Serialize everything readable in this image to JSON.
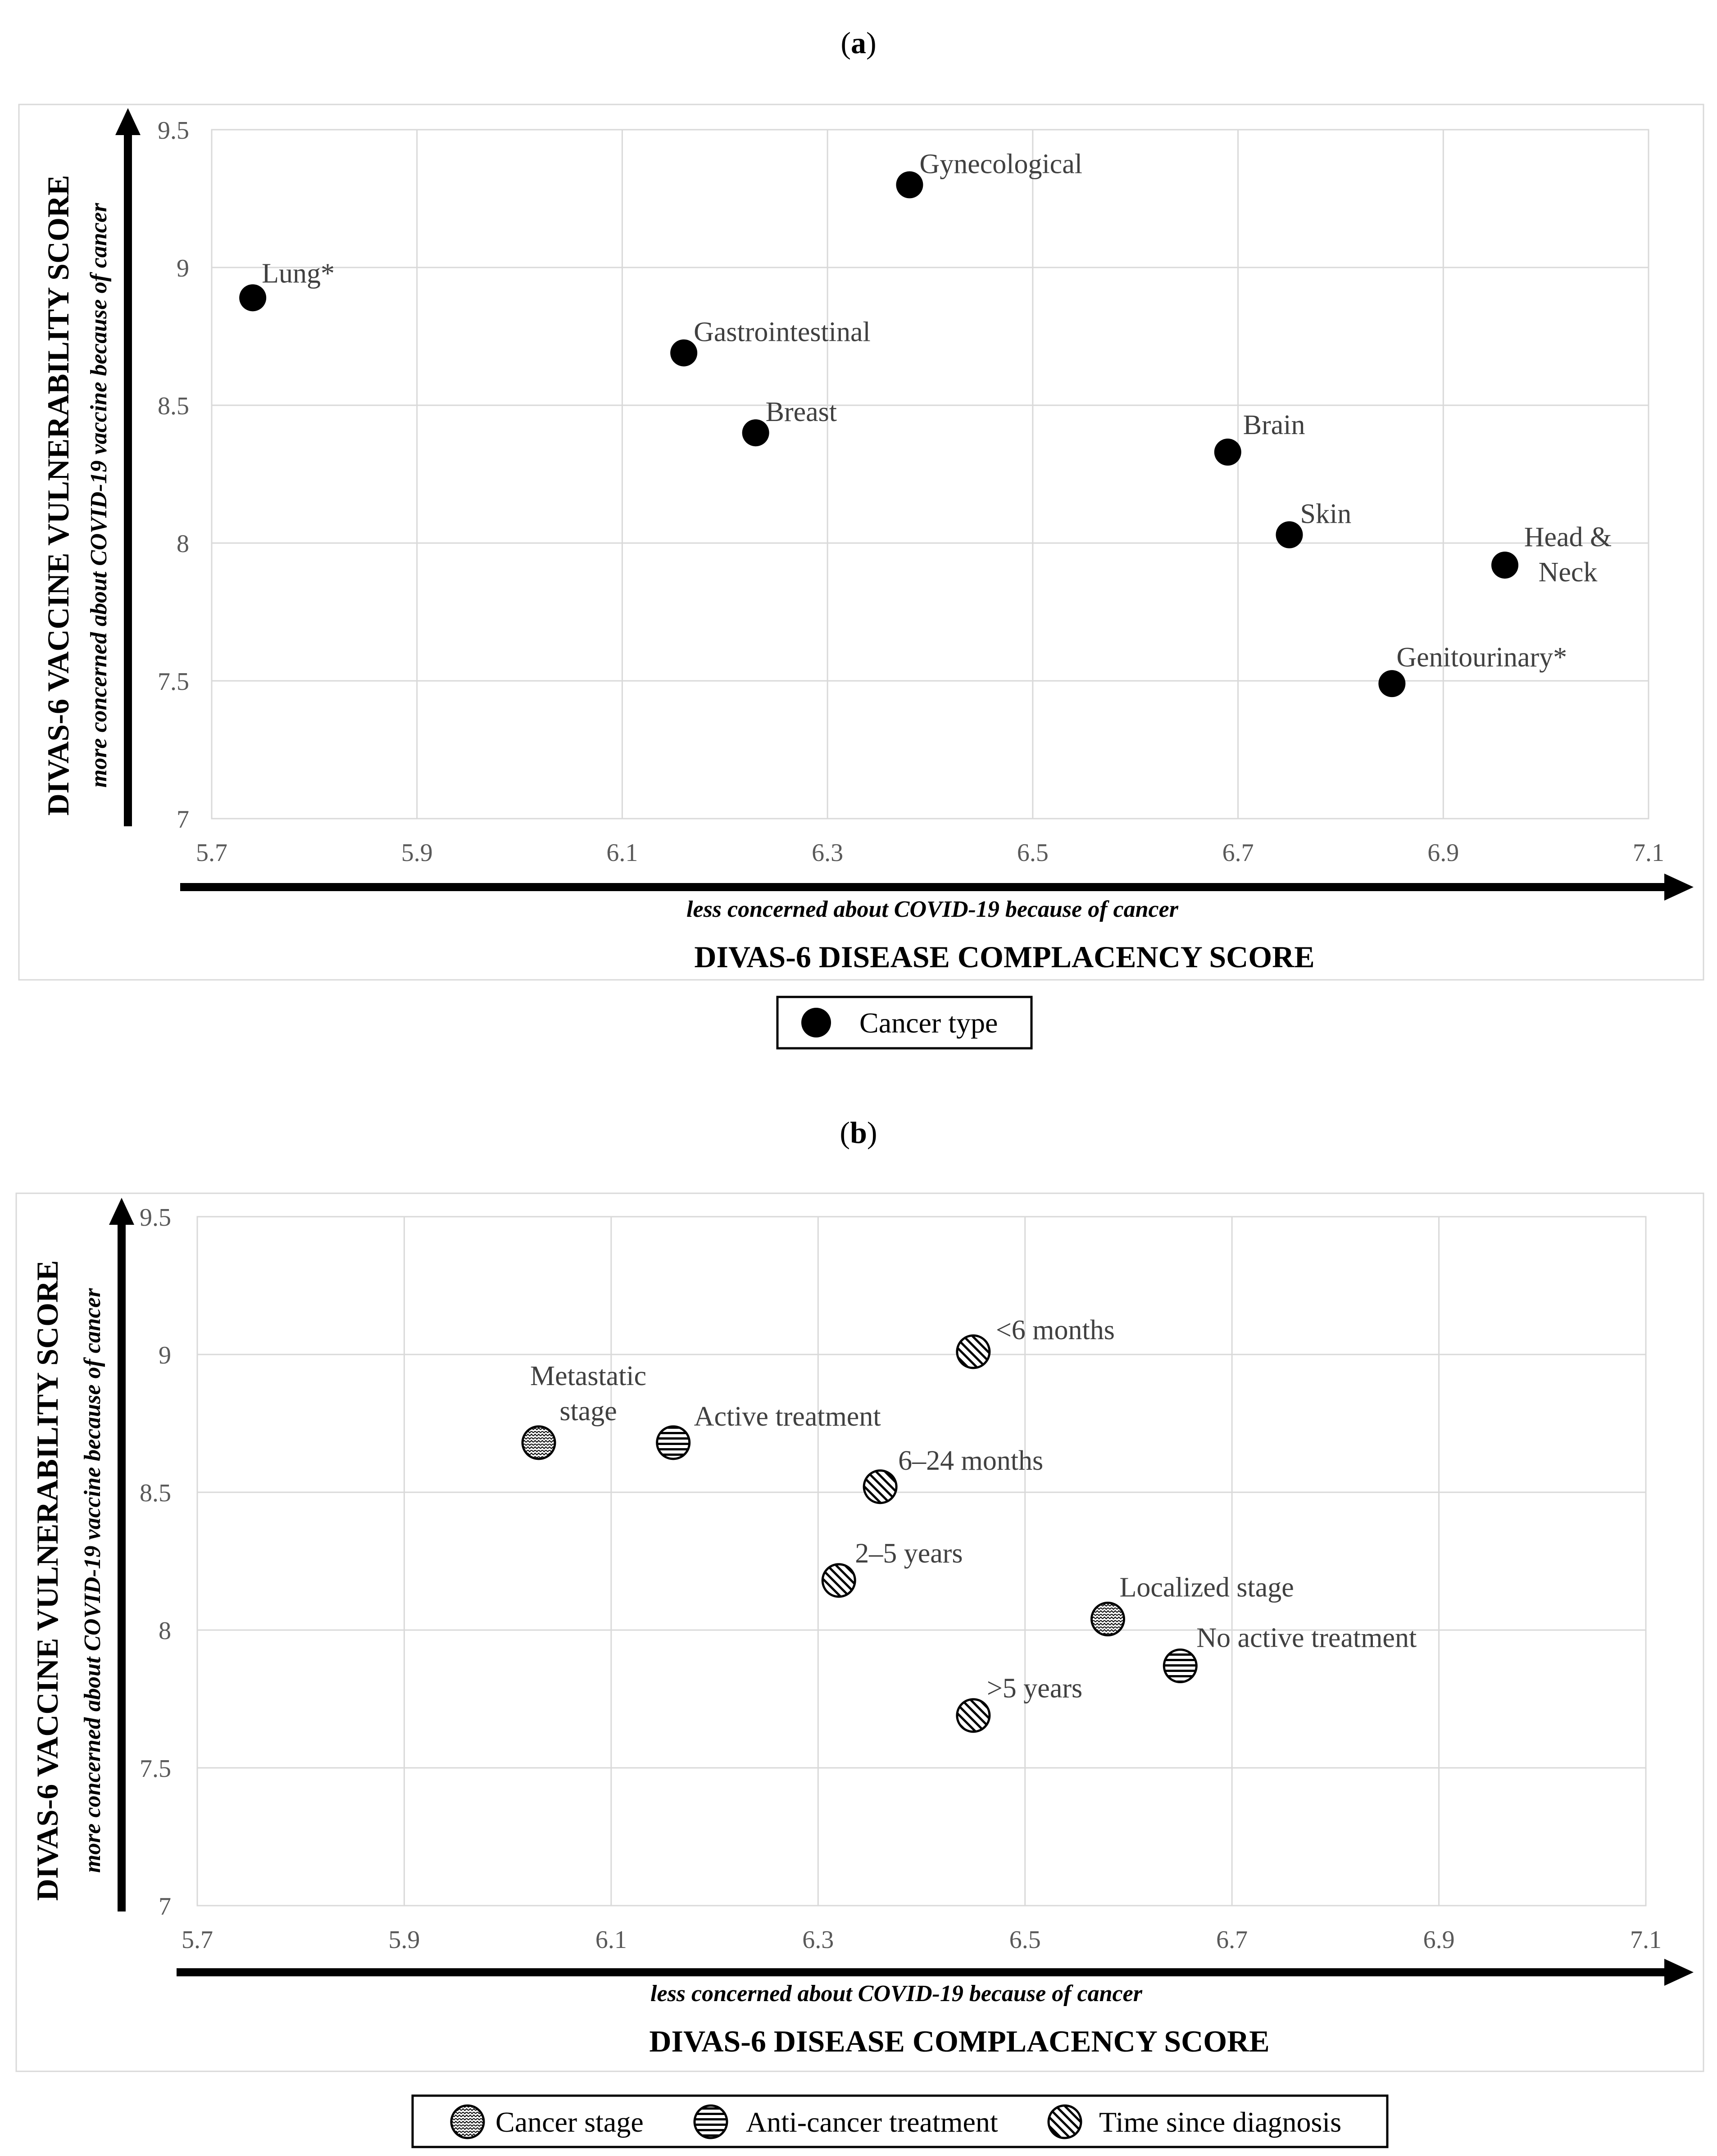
{
  "chart_data": [
    {
      "type": "scatter",
      "panel_label": "a",
      "xlabel": "DIVAS-6 DISEASE COMPLACENCY SCORE",
      "xsublabel": "less concerned about COVID-19 because of cancer",
      "ylabel": "DIVAS-6 VACCINE VULNERABILITY SCORE",
      "ysublabel": "more concerned about COVID-19 vaccine because of cancer",
      "xlim": [
        5.7,
        7.1
      ],
      "ylim": [
        7,
        9.5
      ],
      "xticks": [
        "5.7",
        "5.9",
        "6.1",
        "6.3",
        "6.5",
        "6.7",
        "6.9",
        "7.1"
      ],
      "yticks": [
        "7",
        "7.5",
        "8",
        "8.5",
        "9",
        "9.5"
      ],
      "grid": true,
      "legend": [
        {
          "label": "Cancer type",
          "marker": "solid"
        }
      ],
      "points": [
        {
          "label": "Lung*",
          "x": 5.74,
          "y": 8.89,
          "marker": "solid"
        },
        {
          "label": "Gynecological",
          "x": 6.38,
          "y": 9.3,
          "marker": "solid"
        },
        {
          "label": "Gastrointestinal",
          "x": 6.16,
          "y": 8.69,
          "marker": "solid"
        },
        {
          "label": "Breast",
          "x": 6.23,
          "y": 8.4,
          "marker": "solid"
        },
        {
          "label": "Brain",
          "x": 6.69,
          "y": 8.33,
          "marker": "solid"
        },
        {
          "label": "Skin",
          "x": 6.75,
          "y": 8.03,
          "marker": "solid"
        },
        {
          "label": "Head &",
          "label2": "Neck",
          "x": 6.96,
          "y": 7.92,
          "marker": "solid"
        },
        {
          "label": "Genitourinary*",
          "x": 6.85,
          "y": 7.49,
          "marker": "solid"
        }
      ]
    },
    {
      "type": "scatter",
      "panel_label": "b",
      "xlabel": "DIVAS-6 DISEASE COMPLACENCY SCORE",
      "xsublabel": "less concerned about COVID-19 because of cancer",
      "ylabel": "DIVAS-6 VACCINE VULNERABILITY SCORE",
      "ysublabel": "more concerned about COVID-19 vaccine because of cancer",
      "xlim": [
        5.7,
        7.1
      ],
      "ylim": [
        7,
        9.5
      ],
      "xticks": [
        "5.7",
        "5.9",
        "6.1",
        "6.3",
        "6.5",
        "6.7",
        "6.9",
        "7.1"
      ],
      "yticks": [
        "7",
        "7.5",
        "8",
        "8.5",
        "9",
        "9.5"
      ],
      "grid": true,
      "legend": [
        {
          "label": "Cancer stage",
          "marker": "wave"
        },
        {
          "label": "Anti-cancer treatment",
          "marker": "hlines"
        },
        {
          "label": "Time since diagnosis",
          "marker": "diag"
        }
      ],
      "points": [
        {
          "label": "Metastatic",
          "label2": "stage",
          "x": 6.03,
          "y": 8.68,
          "marker": "wave"
        },
        {
          "label": "Active treatment",
          "x": 6.16,
          "y": 8.68,
          "marker": "hlines"
        },
        {
          "label": "<6 months",
          "x": 6.45,
          "y": 9.01,
          "marker": "diag"
        },
        {
          "label": "6–24 months",
          "x": 6.36,
          "y": 8.52,
          "marker": "diag"
        },
        {
          "label": "2–5 years",
          "x": 6.32,
          "y": 8.18,
          "marker": "diag"
        },
        {
          "label": "Localized stage",
          "x": 6.58,
          "y": 8.04,
          "marker": "wave"
        },
        {
          "label": "No active treatment",
          "x": 6.65,
          "y": 7.87,
          "marker": "hlines"
        },
        {
          "label": ">5 years",
          "x": 6.45,
          "y": 7.69,
          "marker": "diag"
        }
      ]
    }
  ]
}
